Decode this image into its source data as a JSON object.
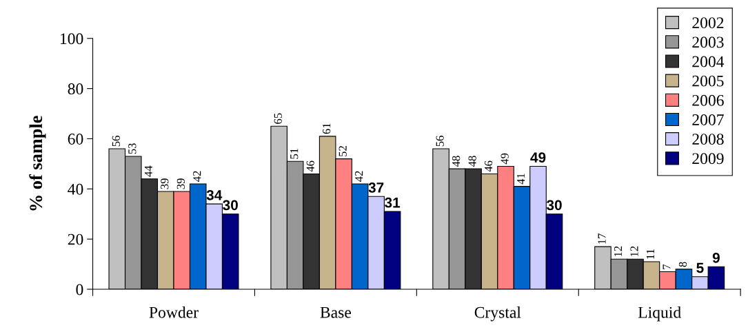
{
  "chart_data": {
    "type": "bar",
    "ylabel": "% of sample",
    "categories": [
      "Powder",
      "Base",
      "Crystal",
      "Liquid"
    ],
    "series": [
      {
        "name": "2002",
        "color": "#c0c0c0",
        "values": [
          56,
          65,
          56,
          17
        ]
      },
      {
        "name": "2003",
        "color": "#969696",
        "values": [
          53,
          51,
          48,
          12
        ]
      },
      {
        "name": "2004",
        "color": "#333333",
        "values": [
          44,
          46,
          48,
          12
        ]
      },
      {
        "name": "2005",
        "color": "#c8b48c",
        "values": [
          39,
          61,
          46,
          11
        ]
      },
      {
        "name": "2006",
        "color": "#ff8080",
        "values": [
          39,
          52,
          49,
          7
        ]
      },
      {
        "name": "2007",
        "color": "#0066cc",
        "values": [
          42,
          42,
          41,
          8
        ]
      },
      {
        "name": "2008",
        "color": "#ccccff",
        "values": [
          34,
          37,
          49,
          5
        ]
      },
      {
        "name": "2009",
        "color": "#000080",
        "values": [
          30,
          31,
          30,
          9
        ]
      }
    ],
    "ylim": [
      0,
      100
    ],
    "yticks": [
      0,
      20,
      40,
      60,
      80,
      100
    ],
    "data_labels": true,
    "grid": false,
    "legend": "top right"
  }
}
